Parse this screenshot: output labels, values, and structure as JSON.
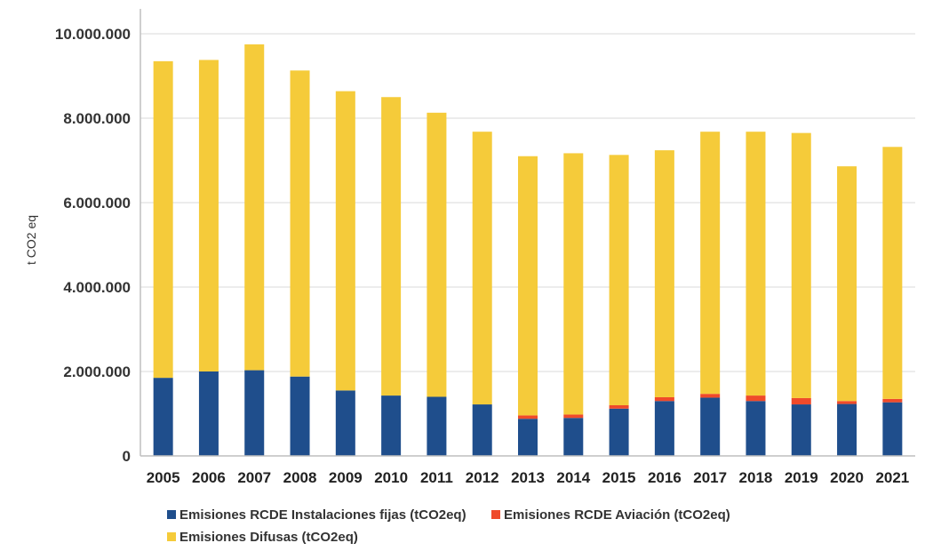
{
  "chart_data": {
    "type": "bar",
    "stacked": true,
    "categories": [
      "2005",
      "2006",
      "2007",
      "2008",
      "2009",
      "2010",
      "2011",
      "2012",
      "2013",
      "2014",
      "2015",
      "2016",
      "2017",
      "2018",
      "2019",
      "2020",
      "2021"
    ],
    "series": [
      {
        "name": "Emisiones RCDE Instalaciones fijas (tCO2eq)",
        "color": "#1f4e8c",
        "values": [
          1850000,
          2000000,
          2030000,
          1880000,
          1550000,
          1430000,
          1400000,
          1220000,
          880000,
          900000,
          1120000,
          1300000,
          1380000,
          1300000,
          1220000,
          1230000,
          1270000
        ]
      },
      {
        "name": "Emisiones RCDE Aviación (tCO2eq)",
        "color": "#ef4a2a",
        "values": [
          0,
          0,
          0,
          0,
          0,
          0,
          0,
          0,
          80000,
          80000,
          80000,
          90000,
          90000,
          130000,
          150000,
          70000,
          80000
        ]
      },
      {
        "name": "Emisiones Difusas (tCO2eq)",
        "color": "#f5cb3a",
        "values": [
          7500000,
          7380000,
          7720000,
          7250000,
          7090000,
          7070000,
          6730000,
          6460000,
          6140000,
          6190000,
          5930000,
          5850000,
          6210000,
          6250000,
          6280000,
          5560000,
          5970000
        ]
      }
    ],
    "title": "",
    "xlabel": "",
    "ylabel": "t CO2 eq",
    "ylim": [
      0,
      10000000
    ],
    "yticks": [
      0,
      2000000,
      4000000,
      6000000,
      8000000,
      10000000
    ],
    "ytick_labels": [
      "0",
      "2.000.000",
      "4.000.000",
      "6.000.000",
      "8.000.000",
      "10.000.000"
    ],
    "grid": "horizontal",
    "legend_position": "bottom"
  }
}
